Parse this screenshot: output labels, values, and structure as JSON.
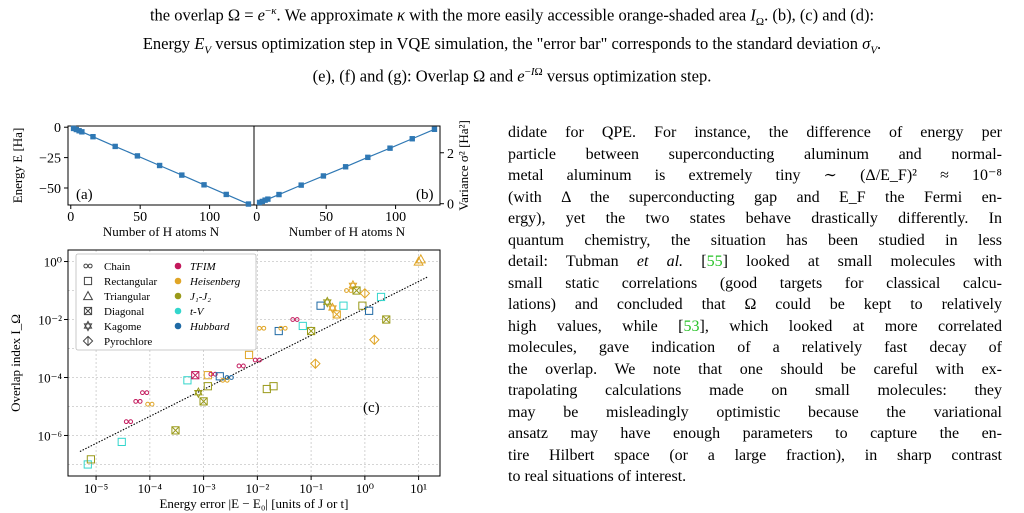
{
  "caption": {
    "lines": [
      "the overlap Ω = e^{−κ}. We approximate κ with the more easily accessible orange-shaded area I_Ω. (b), (c) and (d):",
      "Energy E_V versus optimization step in VQE simulation, the \"error bar\" corresponds to the standard deviation σ_V.",
      "(e), (f) and (g): Overlap Ω and e^{−I_Ω} versus optimization step."
    ]
  },
  "body_lines": [
    {
      "text": "didate for QPE. For instance, the difference of energy per"
    },
    {
      "text": "particle between superconducting aluminum and normal-"
    },
    {
      "text": "metal aluminum is extremely tiny ∼ (Δ/E_F)² ≈ 10⁻⁸"
    },
    {
      "text": "(with Δ the superconducting gap and E_F the Fermi en-"
    },
    {
      "text": "ergy), yet the two states behave drastically differently. In"
    },
    {
      "text": "quantum chemistry, the situation has been studied in less"
    },
    {
      "pre": "detail: Tubman ",
      "em": "et al.",
      "mid": " [",
      "cite": "55",
      "post": "] looked at small molecules with"
    },
    {
      "text": "small static correlations (good targets for classical calcu-"
    },
    {
      "text": "lations) and concluded that Ω could be kept to relatively"
    },
    {
      "pre": "high values, while [",
      "cite": "53",
      "post": "], which looked at more correlated"
    },
    {
      "text": "molecules, gave indication of a relatively fast decay of"
    },
    {
      "text": "the overlap. We note that one should be careful with ex-"
    },
    {
      "text": "trapolating calculations made on small molecules: they"
    },
    {
      "text": "may be misleadingly optimistic because the variational"
    },
    {
      "text": "ansatz may have enough parameters to capture the en-"
    },
    {
      "text": "tire Hilbert space (or a large fraction), in sharp contrast"
    },
    {
      "text": "to real situations of interest."
    }
  ],
  "chart_data": [
    {
      "type": "line",
      "panel": "(a)",
      "xlabel": "Number of H atoms N",
      "ylabel": "Energy E [Ha]",
      "xlim": [
        -2,
        132
      ],
      "ylim": [
        -64,
        1
      ],
      "xticks": [
        "0",
        "50",
        "100"
      ],
      "yticks": [
        "0",
        "−25",
        "−50"
      ],
      "color": "#2f78b4",
      "x": [
        2,
        4,
        6,
        8,
        16,
        32,
        48,
        64,
        80,
        96,
        112,
        128
      ],
      "y": [
        -1.0,
        -1.9,
        -2.9,
        -3.8,
        -7.8,
        -15.8,
        -23.6,
        -31.5,
        -39.4,
        -47.4,
        -55.3,
        -63.2
      ]
    },
    {
      "type": "line",
      "panel": "(b)",
      "xlabel": "Number of H atoms N",
      "ylabel": "Variance σ² [Ha²]",
      "xlim": [
        -2,
        132
      ],
      "ylim": [
        -0.05,
        3.05
      ],
      "xticks": [
        "0",
        "50",
        "100"
      ],
      "yticks": [
        "0",
        "2"
      ],
      "color": "#2f78b4",
      "x": [
        2,
        4,
        6,
        8,
        16,
        32,
        48,
        64,
        80,
        96,
        112,
        128
      ],
      "y": [
        0.05,
        0.09,
        0.14,
        0.18,
        0.36,
        0.73,
        1.09,
        1.45,
        1.82,
        2.18,
        2.55,
        2.92
      ]
    },
    {
      "type": "scatter",
      "panel": "(c)",
      "xlabel": "Energy error |E − E₀| [units of J or t]",
      "ylabel": "Overlap index I_Ω",
      "xscale": "log",
      "yscale": "log",
      "xlim": [
        3e-06,
        25
      ],
      "ylim": [
        4e-08,
        2.5
      ],
      "xticks": [
        "10⁻⁵",
        "10⁻⁴",
        "10⁻³",
        "10⁻²",
        "10⁻¹",
        "10⁰",
        "10¹"
      ],
      "yticks": [
        "10⁻⁶",
        "10⁻⁴",
        "10⁻²",
        "10⁰"
      ],
      "grid": true,
      "legend_placement": "top-left",
      "legend": {
        "lattices": [
          "Chain",
          "Rectangular",
          "Triangular",
          "Diagonal",
          "Kagome",
          "Pyrochlore"
        ],
        "models": [
          {
            "name": "TFIM",
            "color": "#c2185b"
          },
          {
            "name": "Heisenberg",
            "color": "#e0a526"
          },
          {
            "name": "J₁-J₂",
            "color": "#9a9a1a"
          },
          {
            "name": "t-V",
            "color": "#33d6cc"
          },
          {
            "name": "Hubbard",
            "color": "#1f6aa5"
          }
        ]
      },
      "fit_line": {
        "x": [
          5e-06,
          15
        ],
        "y": [
          2.8e-07,
          0.3
        ]
      },
      "points": [
        {
          "x": 7e-06,
          "y": 1e-07,
          "m": "square",
          "c": "t-V"
        },
        {
          "x": 8e-06,
          "y": 1.5e-07,
          "m": "square",
          "c": "J₁-J₂"
        },
        {
          "x": 3e-05,
          "y": 6e-07,
          "m": "square",
          "c": "t-V"
        },
        {
          "x": 4e-05,
          "y": 3e-06,
          "m": "chain",
          "c": "TFIM"
        },
        {
          "x": 6e-05,
          "y": 1.5e-05,
          "m": "chain",
          "c": "TFIM"
        },
        {
          "x": 8e-05,
          "y": 3e-05,
          "m": "chain",
          "c": "TFIM"
        },
        {
          "x": 0.0001,
          "y": 1.2e-05,
          "m": "chain",
          "c": "Heisenberg"
        },
        {
          "x": 0.0003,
          "y": 1.5e-06,
          "m": "diag",
          "c": "J₁-J₂"
        },
        {
          "x": 0.0005,
          "y": 8e-05,
          "m": "square",
          "c": "t-V"
        },
        {
          "x": 0.0007,
          "y": 0.00012,
          "m": "diag",
          "c": "TFIM"
        },
        {
          "x": 0.0008,
          "y": 3e-05,
          "m": "kagome",
          "c": "J₁-J₂"
        },
        {
          "x": 0.001,
          "y": 1.5e-05,
          "m": "diag",
          "c": "J₁-J₂"
        },
        {
          "x": 0.0012,
          "y": 0.00012,
          "m": "square",
          "c": "Heisenberg"
        },
        {
          "x": 0.0015,
          "y": 0.00013,
          "m": "chain",
          "c": "TFIM"
        },
        {
          "x": 0.0012,
          "y": 5e-05,
          "m": "square",
          "c": "J₁-J₂"
        },
        {
          "x": 0.002,
          "y": 0.00011,
          "m": "square",
          "c": "Hubbard"
        },
        {
          "x": 0.0025,
          "y": 8e-05,
          "m": "chain",
          "c": "Heisenberg"
        },
        {
          "x": 0.003,
          "y": 0.0001,
          "m": "chain",
          "c": "Hubbard"
        },
        {
          "x": 0.005,
          "y": 0.00025,
          "m": "chain",
          "c": "TFIM"
        },
        {
          "x": 0.007,
          "y": 0.0006,
          "m": "square",
          "c": "Heisenberg"
        },
        {
          "x": 0.01,
          "y": 0.0004,
          "m": "chain",
          "c": "TFIM"
        },
        {
          "x": 0.012,
          "y": 0.005,
          "m": "chain",
          "c": "Heisenberg"
        },
        {
          "x": 0.015,
          "y": 4e-05,
          "m": "square",
          "c": "J₁-J₂"
        },
        {
          "x": 0.02,
          "y": 5e-05,
          "m": "square",
          "c": "J₁-J₂"
        },
        {
          "x": 0.025,
          "y": 0.004,
          "m": "square",
          "c": "Hubbard"
        },
        {
          "x": 0.03,
          "y": 0.005,
          "m": "chain",
          "c": "Heisenberg"
        },
        {
          "x": 0.05,
          "y": 0.01,
          "m": "chain",
          "c": "TFIM"
        },
        {
          "x": 0.07,
          "y": 0.006,
          "m": "square",
          "c": "t-V"
        },
        {
          "x": 0.1,
          "y": 0.004,
          "m": "diag",
          "c": "J₁-J₂"
        },
        {
          "x": 0.12,
          "y": 0.0003,
          "m": "pyro",
          "c": "Heisenberg"
        },
        {
          "x": 0.15,
          "y": 0.03,
          "m": "square",
          "c": "Hubbard"
        },
        {
          "x": 0.2,
          "y": 0.04,
          "m": "kagome",
          "c": "J₁-J₂"
        },
        {
          "x": 0.25,
          "y": 0.025,
          "m": "kagome",
          "c": "Heisenberg"
        },
        {
          "x": 0.3,
          "y": 0.015,
          "m": "diag",
          "c": "Heisenberg"
        },
        {
          "x": 0.4,
          "y": 0.03,
          "m": "square",
          "c": "t-V"
        },
        {
          "x": 0.5,
          "y": 0.1,
          "m": "chain",
          "c": "Heisenberg"
        },
        {
          "x": 0.6,
          "y": 0.15,
          "m": "kagome",
          "c": "Heisenberg"
        },
        {
          "x": 0.7,
          "y": 0.1,
          "m": "diag",
          "c": "J₁-J₂"
        },
        {
          "x": 0.9,
          "y": 0.03,
          "m": "square",
          "c": "J₁-J₂"
        },
        {
          "x": 1.0,
          "y": 0.08,
          "m": "pyro",
          "c": "Heisenberg"
        },
        {
          "x": 1.2,
          "y": 0.02,
          "m": "square",
          "c": "Hubbard"
        },
        {
          "x": 1.5,
          "y": 0.002,
          "m": "pyro",
          "c": "Heisenberg"
        },
        {
          "x": 2.0,
          "y": 0.06,
          "m": "square",
          "c": "t-V"
        },
        {
          "x": 2.5,
          "y": 0.01,
          "m": "diag",
          "c": "J₁-J₂"
        },
        {
          "x": 10,
          "y": 1.0,
          "m": "triangle",
          "c": "Heisenberg"
        },
        {
          "x": 11,
          "y": 1.2,
          "m": "triangle",
          "c": "Heisenberg"
        }
      ]
    }
  ]
}
